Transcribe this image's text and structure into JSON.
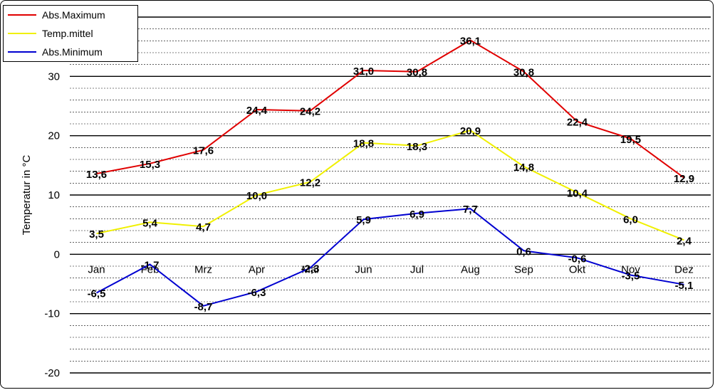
{
  "chart_data": {
    "type": "line",
    "title": "",
    "ylabel": "Temperatur  in °C",
    "xlabel": "",
    "categories": [
      "Jan",
      "Feb",
      "Mrz",
      "Apr",
      "Mai",
      "Jun",
      "Jul",
      "Aug",
      "Sep",
      "Okt",
      "Nov",
      "Dez"
    ],
    "ylim": [
      -20,
      40
    ],
    "yticks": [
      -20,
      -10,
      0,
      10,
      20,
      30
    ],
    "ytick_labels": [
      "-20",
      "-10",
      "0",
      "10",
      "20",
      "30"
    ],
    "major_grid_step": 10,
    "minor_grid_step": 2,
    "grid": true,
    "legend_position": "top-left",
    "series": [
      {
        "name": "Abs.Maximum",
        "color": "#e00000",
        "values": [
          13.6,
          15.3,
          17.6,
          24.4,
          24.2,
          31.0,
          30.8,
          36.1,
          30.8,
          22.4,
          19.5,
          12.9
        ],
        "labels": [
          "13,6",
          "15,3",
          "17,6",
          "24,4",
          "24,2",
          "31,0",
          "30,8",
          "36,1",
          "30,8",
          "22,4",
          "19,5",
          "12,9"
        ]
      },
      {
        "name": "Temp.mittel",
        "color": "#f0f000",
        "values": [
          3.5,
          5.4,
          4.7,
          10.0,
          12.2,
          18.8,
          18.3,
          20.9,
          14.8,
          10.4,
          6.0,
          2.4
        ],
        "labels": [
          "3,5",
          "5,4",
          "4,7",
          "10,0",
          "12,2",
          "18,8",
          "18,3",
          "20,9",
          "14,8",
          "10,4",
          "6,0",
          "2,4"
        ]
      },
      {
        "name": "Abs.Minimum",
        "color": "#0000d0",
        "values": [
          -6.5,
          -1.7,
          -8.7,
          -6.3,
          -2.3,
          5.9,
          6.9,
          7.7,
          0.6,
          -0.6,
          -3.5,
          -5.1
        ],
        "labels": [
          "-6,5",
          "-1,7",
          "-8,7",
          "-6,3",
          "-2,3",
          "5,9",
          "6,9",
          "7,7",
          "0,6",
          "-0,6",
          "-3,5",
          "-5,1"
        ]
      }
    ]
  }
}
